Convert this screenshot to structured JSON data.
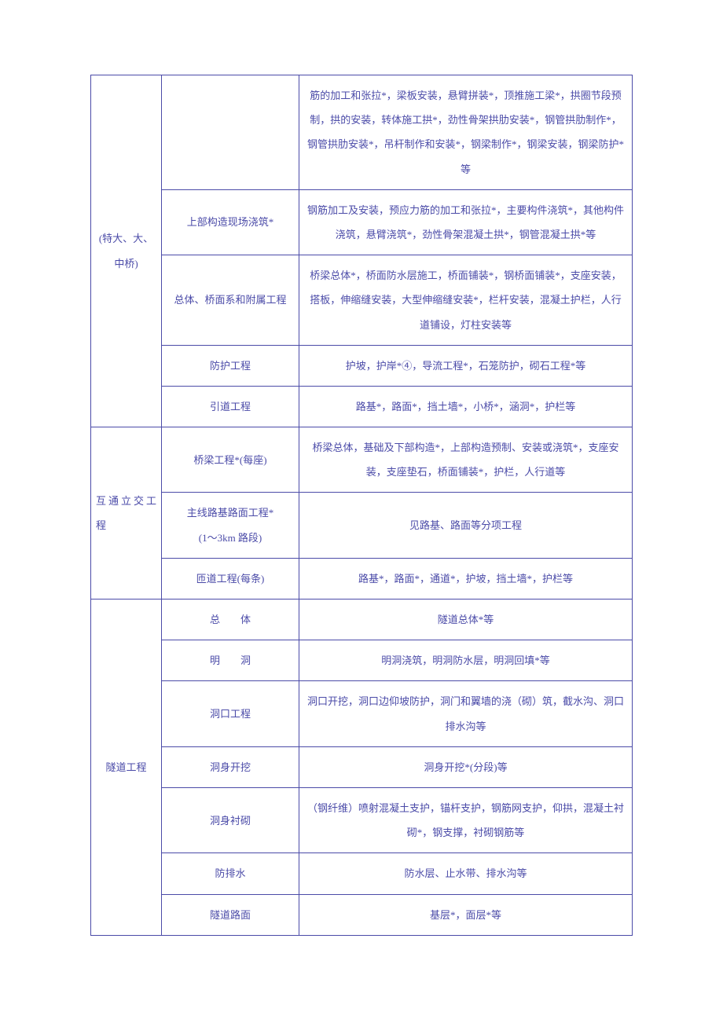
{
  "rows": [
    {
      "c1": "(特大、大、中桥)",
      "c2": "",
      "c3": "筋的加工和张拉*，梁板安装，悬臂拼装*，顶推施工梁*，拱圈节段预制，拱的安装，转体施工拱*，劲性骨架拱肋安装*，钢管拱肋制作*，钢管拱肋安装*，吊杆制作和安装*，钢梁制作*，钢梁安装，钢梁防护*等"
    },
    {
      "c2": "上部构造现场浇筑*",
      "c3": "钢筋加工及安装，预应力筋的加工和张拉*，主要构件浇筑*，其他构件浇筑，悬臂浇筑*，劲性骨架混凝土拱*，钢管混凝土拱*等"
    },
    {
      "c2": "总体、桥面系和附属工程",
      "c3": "桥梁总体*，桥面防水层施工，桥面铺装*，钢桥面铺装*，支座安装，搭板，伸缩缝安装，大型伸缩缝安装*，栏杆安装，混凝土护栏，人行道铺设，灯柱安装等"
    },
    {
      "c2": "防护工程",
      "c3": "护坡，护岸*④，导流工程*，石笼防护，砌石工程*等"
    },
    {
      "c2": "引道工程",
      "c3": "路基*，路面*，挡土墙*，小桥*，涵洞*，护栏等"
    },
    {
      "c1": "互通立交工　　　程",
      "c2": "桥梁工程*(每座)",
      "c3": "桥梁总体，基础及下部构造*，上部构造预制、安装或浇筑*，支座安装，支座垫石，桥面铺装*，护栏，人行道等"
    },
    {
      "c2": "主线路基路面工程*\n(1～3km 路段)",
      "c3": "见路基、路面等分项工程"
    },
    {
      "c2": "匝道工程(每条)",
      "c3": "路基*，路面*，通道*，护坡，挡土墙*，护栏等"
    },
    {
      "c1": "隧道工程",
      "c2": "总　　体",
      "c3": "隧道总体*等"
    },
    {
      "c2": "明　　洞",
      "c3": "明洞浇筑，明洞防水层，明洞回填*等"
    },
    {
      "c2": "洞口工程",
      "c3": "洞口开挖，洞口边仰坡防护，洞门和翼墙的浇（砌）筑，截水沟、洞口排水沟等"
    },
    {
      "c2": "洞身开挖",
      "c3": "洞身开挖*(分段)等"
    },
    {
      "c2": "洞身衬砌",
      "c3": "（钢纤维）喷射混凝土支护，锚杆支护，钢筋网支护，仰拱，混凝土衬砌*，钢支撑，衬砌钢筋等"
    },
    {
      "c2": "防排水",
      "c3": "防水层、止水带、排水沟等"
    },
    {
      "c2": "隧道路面",
      "c3": "基层*，面层*等"
    }
  ]
}
